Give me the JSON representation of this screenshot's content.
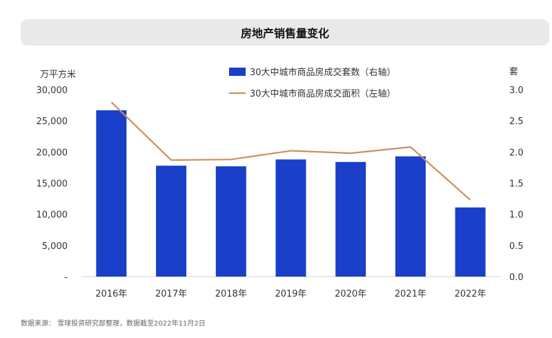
{
  "chart_data": {
    "type": "bar",
    "title": "房地产销售量变化",
    "categories": [
      "2016年",
      "2017年",
      "2018年",
      "2019年",
      "2020年",
      "2021年",
      "2022年"
    ],
    "series": [
      {
        "name": "30大中城市商品房成交套数（右轴）",
        "kind": "bar",
        "axis": "right",
        "color": "#1a3fc9",
        "values": [
          2.67,
          1.78,
          1.77,
          1.88,
          1.84,
          1.93,
          1.11
        ]
      },
      {
        "name": "30大中城市商品房成交面积（左轴）",
        "kind": "line",
        "axis": "left",
        "color": "#c8915a",
        "values": [
          28000,
          18700,
          18800,
          20200,
          19800,
          20800,
          12300
        ]
      }
    ],
    "left_axis": {
      "unit": "万平方米",
      "ylim": [
        0,
        30000
      ],
      "ticks": [
        "-",
        "5,000",
        "10,000",
        "15,000",
        "20,000",
        "25,000",
        "30,000"
      ]
    },
    "right_axis": {
      "unit": "套",
      "ylim": [
        0,
        3.0
      ],
      "ticks": [
        "0.0",
        "0.5",
        "1.0",
        "1.5",
        "2.0",
        "2.5",
        "3.0"
      ]
    },
    "legend_position": "top-center",
    "grid": false
  },
  "source": "数据来源：  雪球投资研究部整理，数据截至2022年11月2日"
}
